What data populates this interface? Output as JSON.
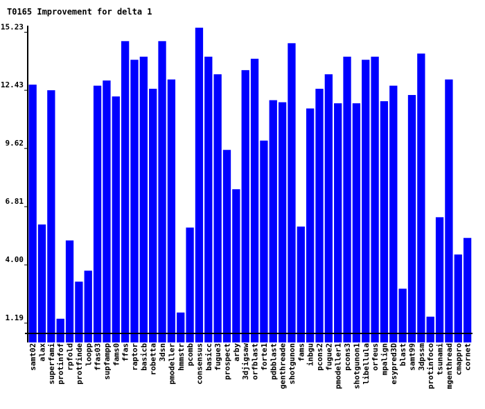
{
  "chart_data": {
    "type": "bar",
    "title": "T0165 Improvement for delta 1",
    "xlabel": "",
    "ylabel": "",
    "yticks": [
      "1.19",
      "4.00",
      "6.81",
      "9.62",
      "12.43",
      "15.23"
    ],
    "ylim": [
      0.69,
      15.81
    ],
    "grid": false,
    "legend": "none",
    "bar_color": "#0000ff",
    "axis_color": "#000000",
    "categories": [
      "samt02",
      "alax",
      "superfamily",
      "protinfofold",
      "rpfold",
      "protfinder",
      "loopp",
      "ffas03",
      "supfampp",
      "fams0",
      "ffas",
      "raptor",
      "basicb",
      "robetta",
      "3dsn",
      "pmodeller",
      "hmmstr",
      "pcomb",
      "consensus",
      "basicc",
      "fugue3",
      "prospect",
      "arby",
      "3djigsaw",
      "orfblast",
      "forte1",
      "pdbblast",
      "genthreader",
      "shotgunon",
      "fams",
      "inbgu",
      "pcons2",
      "fugue2",
      "pmodeller1",
      "pcons3",
      "shotgunon1",
      "libellula",
      "orfeus",
      "mpalign",
      "esypred3d",
      "blast",
      "samt99",
      "3dpssm",
      "protinfocm",
      "tsunami",
      "mgenthreader",
      "cmappro",
      "cornet"
    ],
    "tick_labels": [
      "samt02",
      "alax",
      "superfami",
      "protinfof",
      "rpfold",
      "protfinde",
      "loopp",
      "ffas03",
      "supfampp",
      "fams0",
      "ffas",
      "raptor",
      "basicb",
      "robetta",
      "3dsn",
      "pmodeller",
      "hmmstr",
      "pcomb",
      "consensus",
      "basicc",
      "fugue3",
      "prospect",
      "arby",
      "3djigsaw",
      "orfblast",
      "forte1",
      "pdbblast",
      "genthreade",
      "shotgunon",
      "fams",
      "inbgu",
      "pcons2",
      "fugue2",
      "pmodeller1",
      "pcons3",
      "shotgunon1",
      "libellula",
      "orfeus",
      "mpalign",
      "esypred3D",
      "blast",
      "samt99",
      "3dpssm",
      "protinfoco",
      "tsunami",
      "mgenthread",
      "cmappro",
      "cornet"
    ],
    "values": [
      12.7,
      5.95,
      12.43,
      1.4,
      5.18,
      3.19,
      3.72,
      12.65,
      12.9,
      12.13,
      14.8,
      13.9,
      14.05,
      12.5,
      14.8,
      12.95,
      1.7,
      5.8,
      15.45,
      14.05,
      13.2,
      9.55,
      7.65,
      13.4,
      13.95,
      10.0,
      11.95,
      11.85,
      14.7,
      5.85,
      11.55,
      12.5,
      13.2,
      11.8,
      14.05,
      11.8,
      13.9,
      14.05,
      11.9,
      12.65,
      2.85,
      12.2,
      14.2,
      1.5,
      6.3,
      12.95,
      4.5,
      5.3
    ]
  }
}
